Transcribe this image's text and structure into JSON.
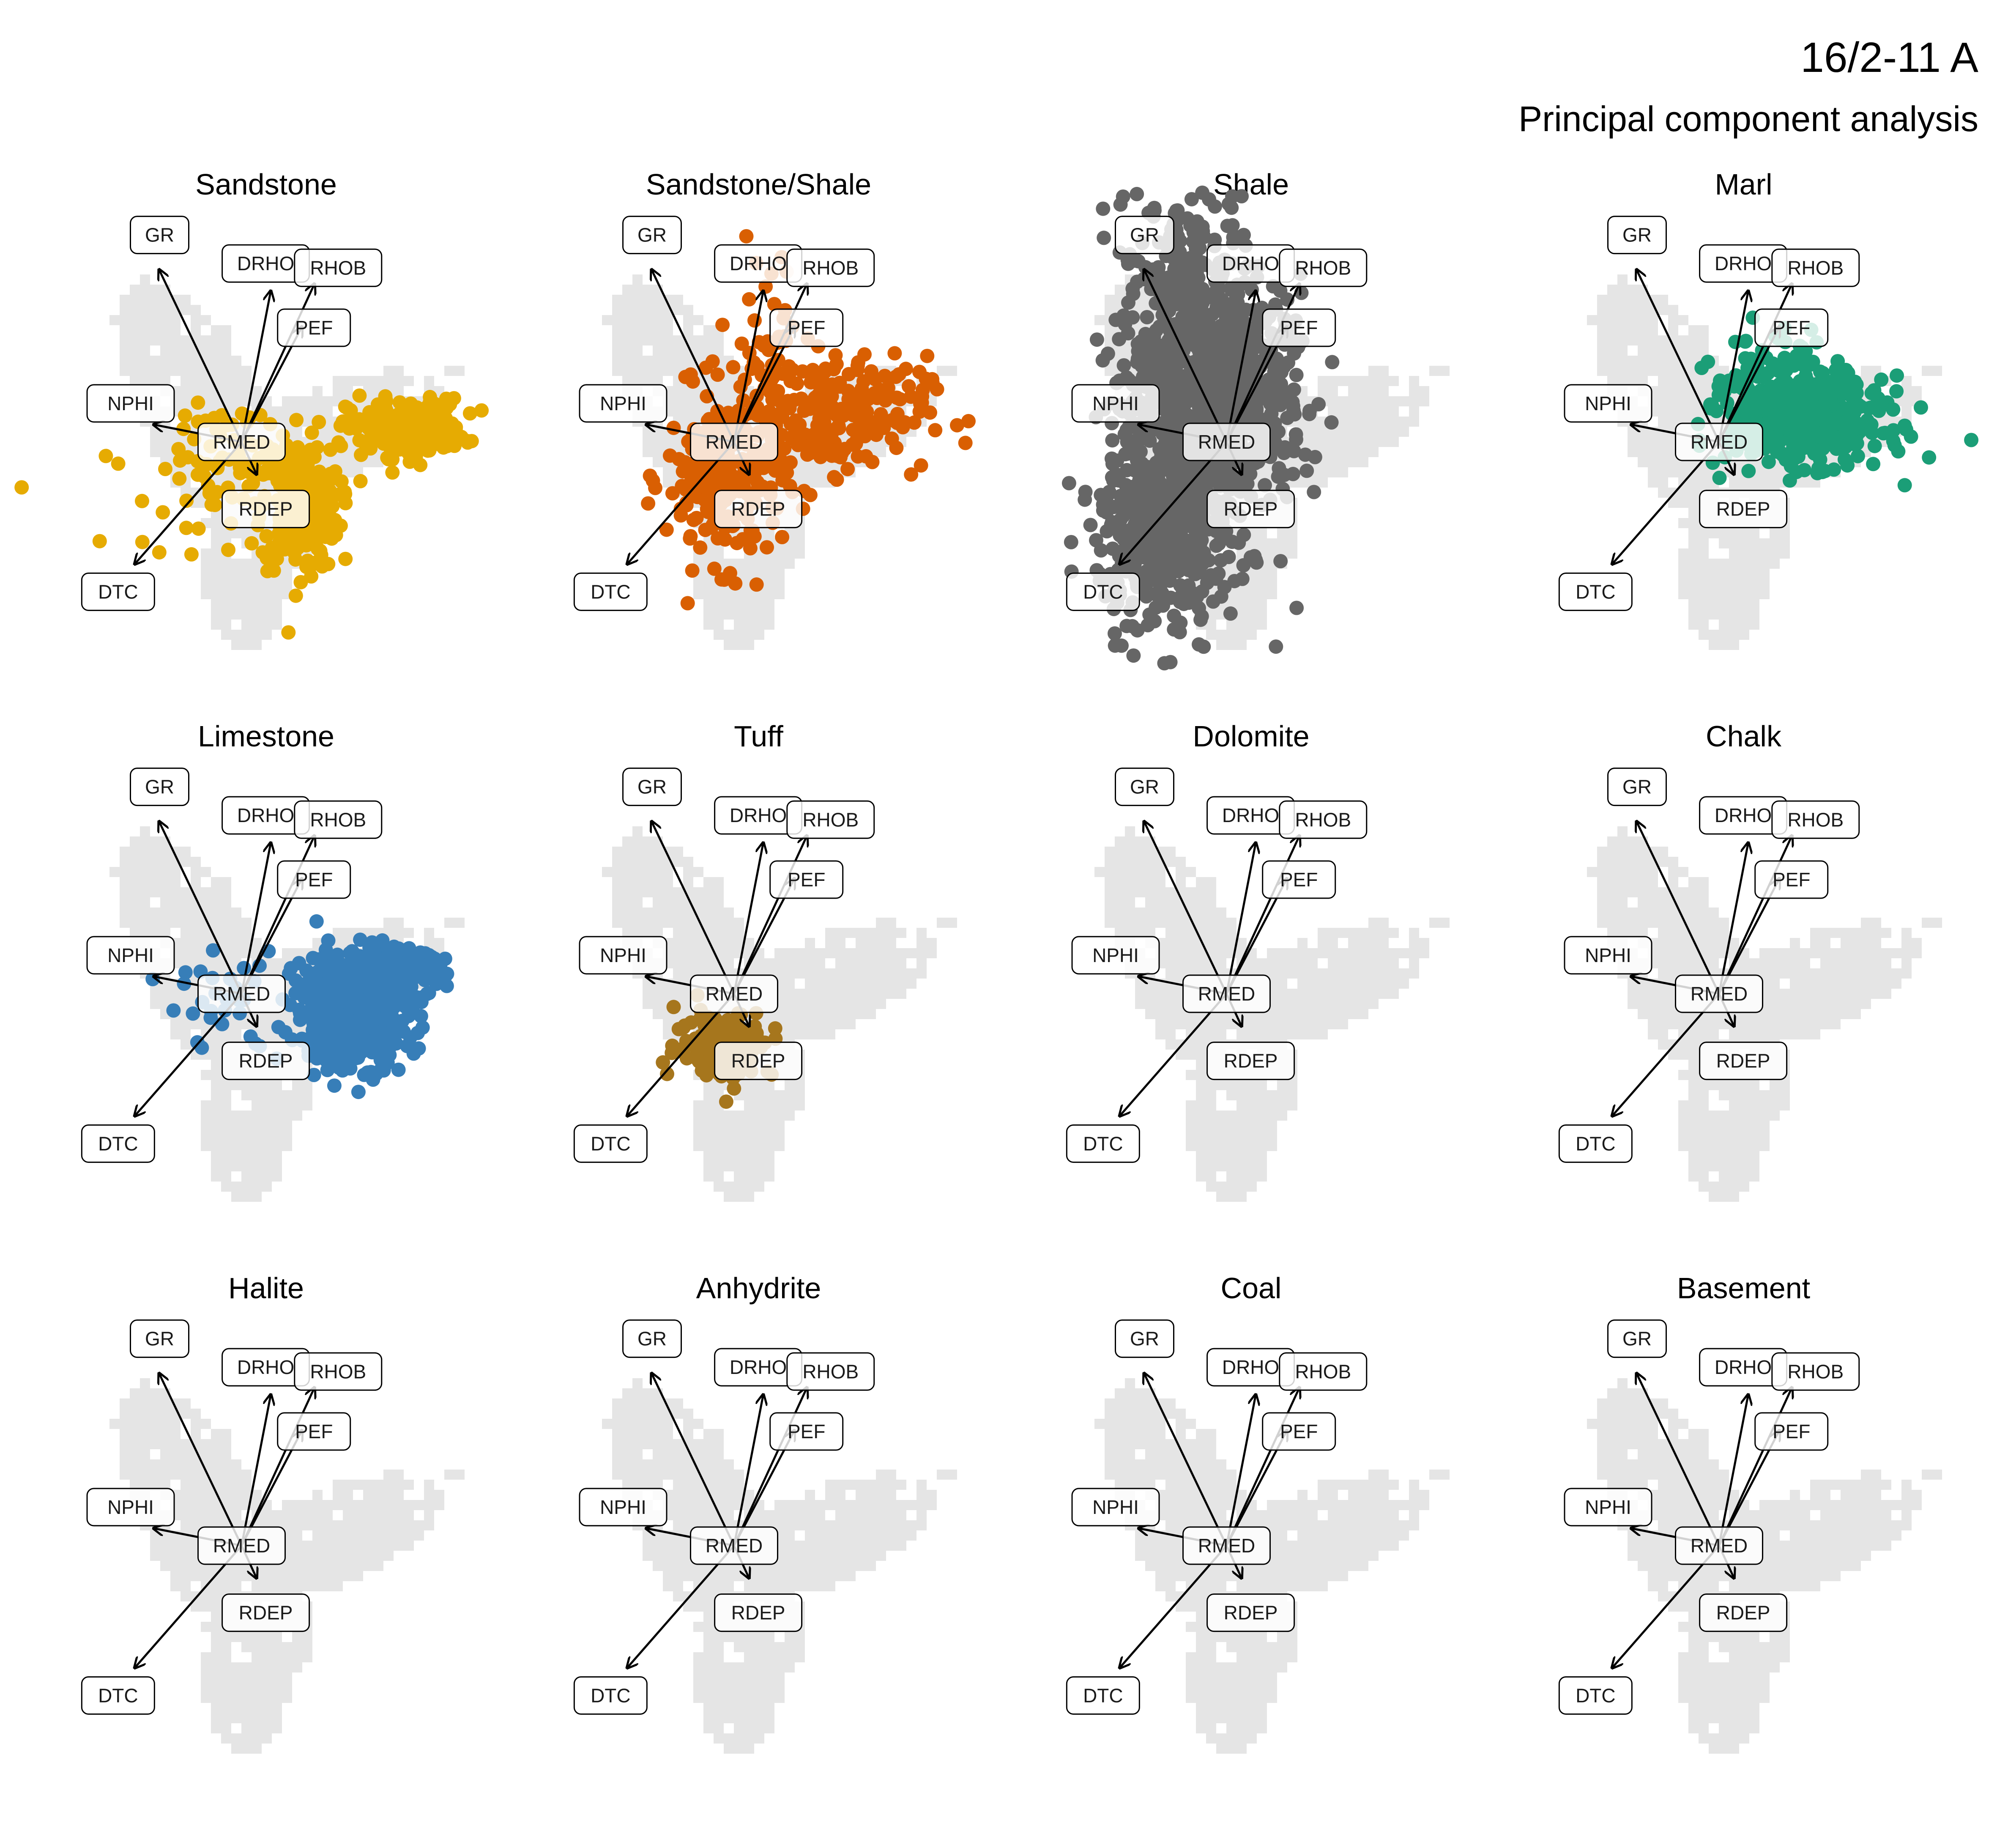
{
  "title": "16/2-11 A",
  "subtitle": "Principal component analysis",
  "chart_data": {
    "type": "scatter",
    "layout": "facet grid 3x4",
    "background": "grey density cloud of all samples in every panel",
    "loadings": [
      {
        "name": "GR",
        "x": -0.85,
        "y": 1.2
      },
      {
        "name": "DRHO",
        "x": 0.3,
        "y": 1.05
      },
      {
        "name": "RHOB",
        "x": 0.75,
        "y": 1.1
      },
      {
        "name": "PEF",
        "x": 0.62,
        "y": 0.8
      },
      {
        "name": "NPHI",
        "x": -0.9,
        "y": 0.12
      },
      {
        "name": "RMED",
        "x": 0.0,
        "y": 0.0
      },
      {
        "name": "RDEP",
        "x": 0.15,
        "y": -0.22
      },
      {
        "name": "DTC",
        "x": -1.1,
        "y": -0.85
      }
    ],
    "series": [
      {
        "name": "Sandstone",
        "color": "#E6AB02",
        "clusters": [
          {
            "cx": 0.6,
            "cy": -0.45,
            "sx": 0.2,
            "sy": 0.22,
            "n": 300
          },
          {
            "cx": 1.7,
            "cy": 0.1,
            "sx": 0.3,
            "sy": 0.1,
            "n": 220
          },
          {
            "cx": 0.1,
            "cy": -0.1,
            "sx": 0.4,
            "sy": 0.18,
            "n": 60
          },
          {
            "cx": -0.4,
            "cy": -0.35,
            "sx": 0.5,
            "sy": 0.2,
            "n": 30
          }
        ]
      },
      {
        "name": "Sandstone/Shale",
        "color": "#D95F02",
        "clusters": [
          {
            "cx": -0.1,
            "cy": -0.25,
            "sx": 0.3,
            "sy": 0.3,
            "n": 250
          },
          {
            "cx": 1.0,
            "cy": 0.2,
            "sx": 0.5,
            "sy": 0.2,
            "n": 220
          },
          {
            "cx": 0.35,
            "cy": 0.7,
            "sx": 0.25,
            "sy": 0.35,
            "n": 40
          }
        ]
      },
      {
        "name": "Shale",
        "color": "#666666",
        "clusters": [
          {
            "cx": -0.35,
            "cy": 0.35,
            "sx": 0.38,
            "sy": 0.7,
            "n": 900
          },
          {
            "cx": -0.75,
            "cy": -0.6,
            "sx": 0.3,
            "sy": 0.35,
            "n": 300
          },
          {
            "cx": 0.3,
            "cy": 0.4,
            "sx": 0.35,
            "sy": 0.4,
            "n": 180
          }
        ]
      },
      {
        "name": "Marl",
        "color": "#1B9E77",
        "clusters": [
          {
            "cx": 0.9,
            "cy": 0.15,
            "sx": 0.4,
            "sy": 0.15,
            "n": 500
          },
          {
            "cx": 0.5,
            "cy": 0.5,
            "sx": 0.3,
            "sy": 0.15,
            "n": 60
          }
        ]
      },
      {
        "name": "Limestone",
        "color": "#377EB8",
        "clusters": [
          {
            "cx": 1.15,
            "cy": -0.1,
            "sx": 0.3,
            "sy": 0.2,
            "n": 550
          },
          {
            "cx": 1.6,
            "cy": 0.15,
            "sx": 0.25,
            "sy": 0.08,
            "n": 150
          },
          {
            "cx": -0.2,
            "cy": -0.05,
            "sx": 0.3,
            "sy": 0.2,
            "n": 30
          }
        ]
      },
      {
        "name": "Tuff",
        "color": "#A6761D",
        "clusters": [
          {
            "cx": -0.1,
            "cy": -0.35,
            "sx": 0.25,
            "sy": 0.12,
            "n": 150
          }
        ]
      },
      {
        "name": "Dolomite",
        "color": "#999999",
        "clusters": []
      },
      {
        "name": "Chalk",
        "color": "#999999",
        "clusters": []
      },
      {
        "name": "Halite",
        "color": "#999999",
        "clusters": []
      },
      {
        "name": "Anhydrite",
        "color": "#999999",
        "clusters": []
      },
      {
        "name": "Coal",
        "color": "#999999",
        "clusters": []
      },
      {
        "name": "Basement",
        "color": "#999999",
        "clusters": []
      }
    ],
    "xlim": [
      -2.0,
      2.6
    ],
    "ylim": [
      -1.6,
      1.6
    ],
    "grid": false,
    "axes": false,
    "background_color": "#E5E5E5",
    "arrow_color": "#000000",
    "label_fill": "#FFFFFF"
  }
}
